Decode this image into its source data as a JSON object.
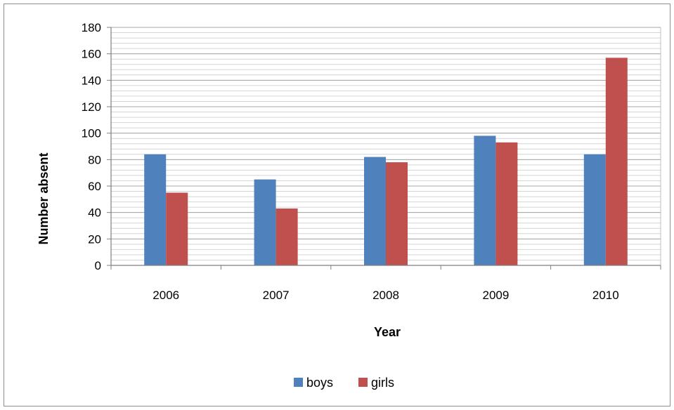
{
  "chart_data": {
    "type": "bar",
    "title": "",
    "xlabel": "Year",
    "ylabel": "Number absent",
    "categories": [
      "2006",
      "2007",
      "2008",
      "2009",
      "2010"
    ],
    "series": [
      {
        "name": "boys",
        "values": [
          84,
          65,
          82,
          98,
          84
        ],
        "color": "#4f81bd"
      },
      {
        "name": "girls",
        "values": [
          55,
          43,
          78,
          93,
          157
        ],
        "color": "#c0504d"
      }
    ],
    "ylim": [
      0,
      180
    ],
    "yticks": [
      "0",
      "20",
      "40",
      "60",
      "80",
      "100",
      "120",
      "140",
      "160",
      "180"
    ],
    "grid": true,
    "legend_position": "bottom"
  }
}
